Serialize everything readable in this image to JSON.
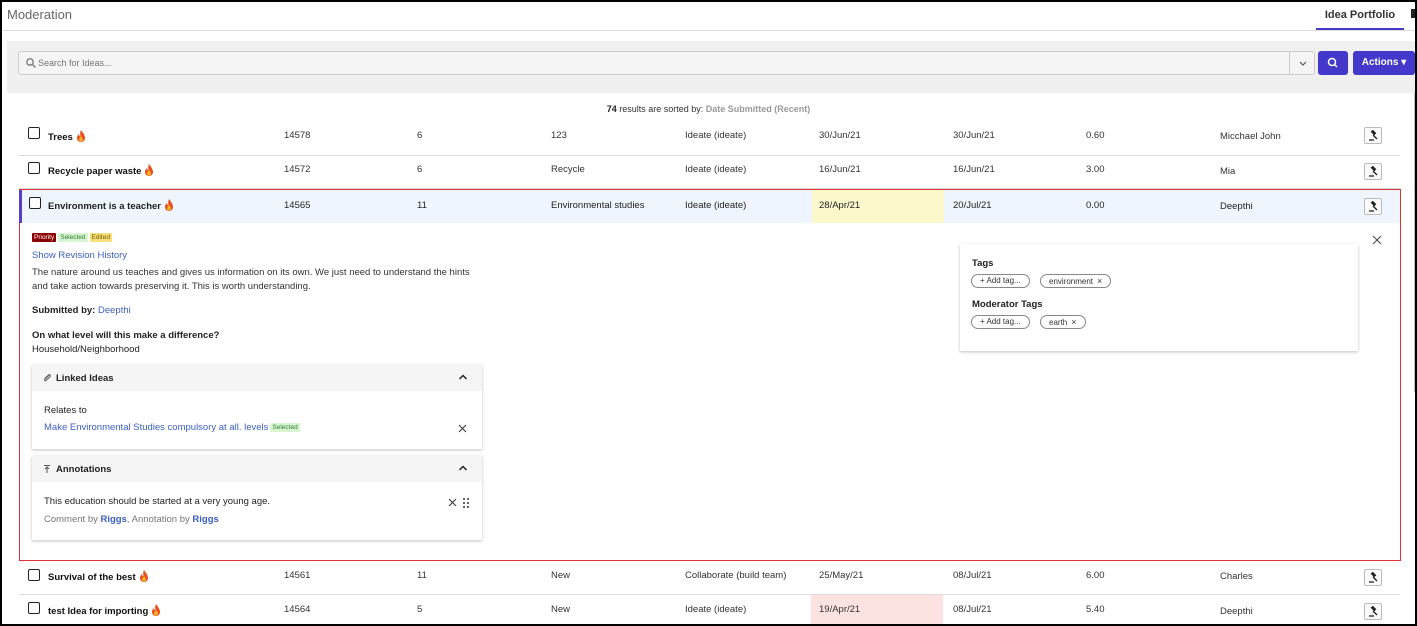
{
  "header": {
    "app_title": "Moderation",
    "active_tab": "Idea Portfolio"
  },
  "search": {
    "placeholder": "Search for Ideas...",
    "actions_label": "Actions"
  },
  "results": {
    "count": "74",
    "middle": " results are sorted by: ",
    "sort": "Date Submitted (Recent)"
  },
  "rows_top": [
    {
      "title": "Trees",
      "id": "14578",
      "score": "6",
      "category": "123",
      "stage": "Ideate (ideate)",
      "submitted": "30/Jun/21",
      "updated": "30/Jun/21",
      "value": "0.60",
      "author": "Micchael John"
    },
    {
      "title": "Recycle paper waste",
      "id": "14572",
      "score": "6",
      "category": "Recycle",
      "stage": "Ideate (ideate)",
      "submitted": "16/Jun/21",
      "updated": "16/Jun/21",
      "value": "3.00",
      "author": "Mia"
    }
  ],
  "expanded": {
    "title": "Environment is a teacher",
    "id": "14565",
    "score": "11",
    "category": "Environmental studies",
    "stage": "Ideate (ideate)",
    "submitted": "28/Apr/21",
    "updated": "20/Jul/21",
    "value": "0.00",
    "author": "Deepthi",
    "badges": {
      "priority": "Priority",
      "selected": "Selected",
      "edited": "Edited"
    },
    "revision_link": "Show Revision History",
    "description": "The nature around us teaches and gives us information on its own. We just need to understand the hints and take action towards preserving it. This is worth understanding.",
    "submitted_by_label": "Submitted by:",
    "submitted_by": "Deepthi",
    "question": "On what level will this make a difference?",
    "answer": "Household/Neighborhood",
    "linked": {
      "title": "Linked Ideas",
      "relates_label": "Relates to",
      "link_text": "Make Environmental Studies compulsory at all. levels",
      "link_badge": "Selected"
    },
    "annotations": {
      "title": "Annotations",
      "text": "This education should be started at a very young age.",
      "comment_prefix": "Comment by ",
      "comment_user": "Riggs",
      "annot_prefix": ", Annotation by ",
      "annot_user": "Riggs"
    },
    "tags": {
      "label": "Tags",
      "add": "+ Add tag...",
      "items": [
        "environment"
      ]
    },
    "moderator_tags": {
      "label": "Moderator Tags",
      "add": "+ Add tag...",
      "items": [
        "earth"
      ]
    }
  },
  "rows_bottom": [
    {
      "title": "Survival of the best",
      "id": "14561",
      "score": "11",
      "category": "New",
      "stage": "Collaborate (build team)",
      "submitted": "25/May/21",
      "updated": "08/Jul/21",
      "value": "6.00",
      "author": "Charles"
    },
    {
      "title": "test Idea for importing",
      "id": "14564",
      "score": "5",
      "category": "New",
      "stage": "Ideate (ideate)",
      "submitted": "19/Apr/21",
      "updated": "08/Jul/21",
      "value": "5.40",
      "author": "Deepthi"
    }
  ],
  "colors": {
    "accent": "#4338ca",
    "link": "#3b5fc4",
    "highlight_yellow": "#fbf8cc",
    "highlight_red": "#fde2e2",
    "expanded_border": "#dd3333"
  },
  "icons": [
    "search-icon",
    "chevron-down-icon",
    "flame-icon",
    "gavel-icon",
    "paperclip-icon",
    "annotation-icon",
    "chevron-up-icon",
    "close-icon",
    "drag-handle-icon"
  ]
}
